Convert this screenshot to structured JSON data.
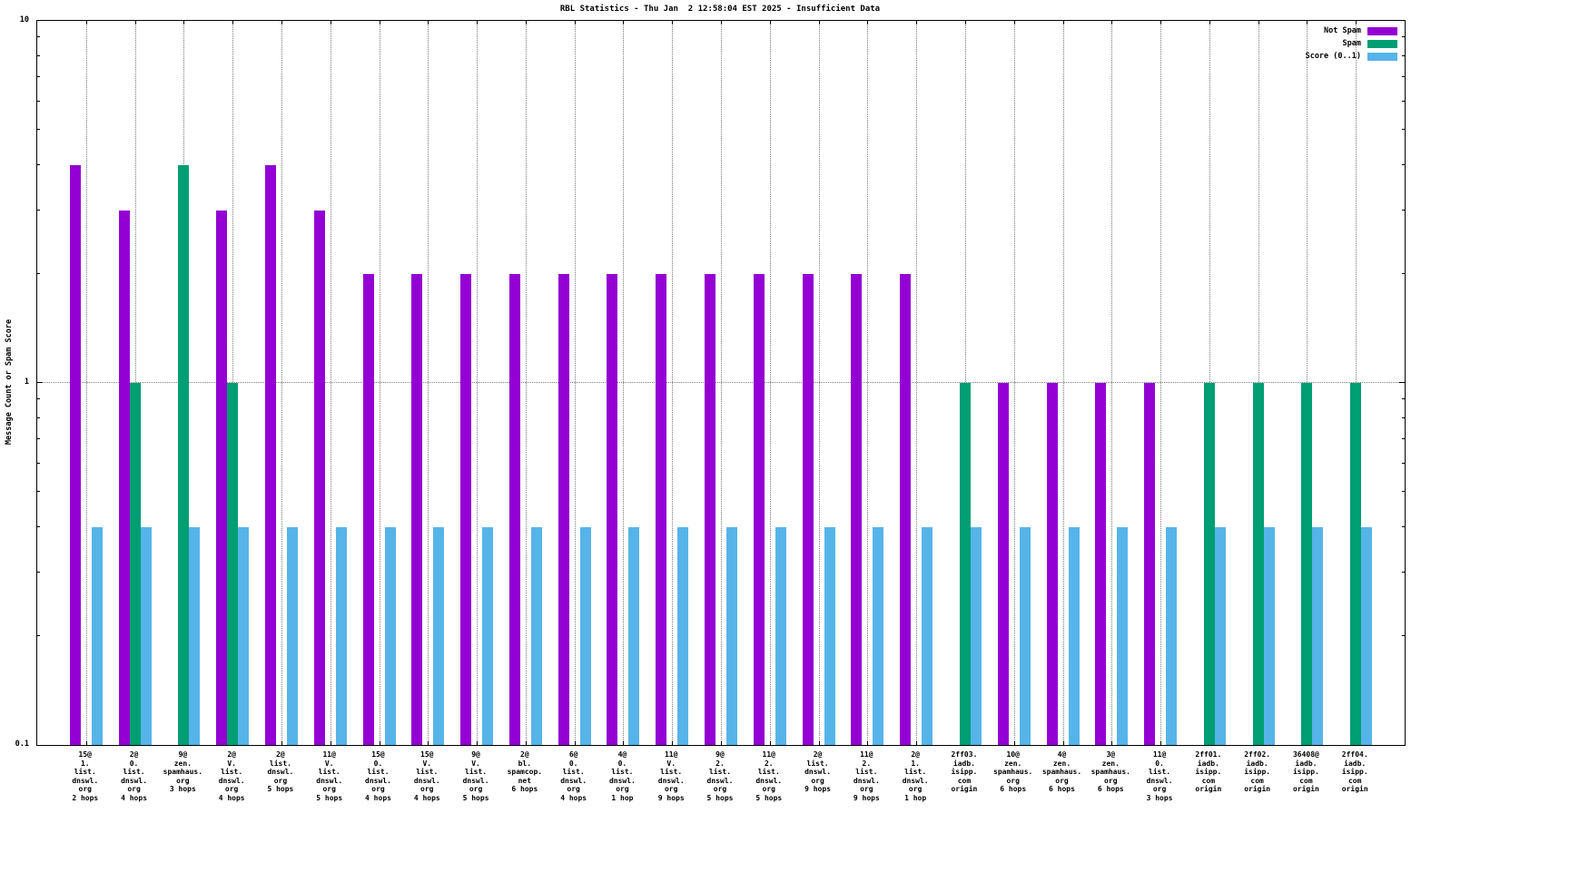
{
  "title": "RBL Statistics - Thu Jan  2 12:58:04 EST 2025 - Insufficient Data",
  "ylabel": "Message Count or Spam Score",
  "legend": [
    {
      "label": "Not Spam",
      "color": "#9400d3"
    },
    {
      "label": "Spam",
      "color": "#009e73"
    },
    {
      "label": "Score (0..1)",
      "color": "#56b4e9"
    }
  ],
  "chart_data": {
    "type": "bar",
    "y_scale": "log",
    "ylim": [
      0.1,
      10
    ],
    "y_major_ticks": [
      0.1,
      1,
      10
    ],
    "y_minor_ticks": [
      0.2,
      0.3,
      0.4,
      0.5,
      0.6,
      0.7,
      0.8,
      0.9,
      2,
      3,
      4,
      5,
      6,
      7,
      8,
      9
    ],
    "ytick_labels": [
      "10",
      "1",
      "0.1"
    ],
    "grid_horizontal_at": [
      1
    ],
    "grid_vertical_per_category": true,
    "legend_position": "top-right-inside",
    "title": "RBL Statistics - Thu Jan  2 12:58:04 EST 2025 - Insufficient Data",
    "xlabel": "",
    "categories": [
      [
        "15@",
        "1.",
        "list.",
        "dnswl.",
        "org",
        "2 hops"
      ],
      [
        "2@",
        "0.",
        "list.",
        "dnswl.",
        "org",
        "4 hops"
      ],
      [
        "9@",
        "zen.",
        "spamhaus.",
        "org",
        "3 hops"
      ],
      [
        "2@",
        "V.",
        "list.",
        "dnswl.",
        "org",
        "4 hops"
      ],
      [
        "2@",
        "list.",
        "dnswl.",
        "org",
        "5 hops"
      ],
      [
        "11@",
        "V.",
        "list.",
        "dnswl.",
        "org",
        "5 hops"
      ],
      [
        "15@",
        "0.",
        "list.",
        "dnswl.",
        "org",
        "4 hops"
      ],
      [
        "15@",
        "V.",
        "list.",
        "dnswl.",
        "org",
        "4 hops"
      ],
      [
        "9@",
        "V.",
        "list.",
        "dnswl.",
        "org",
        "5 hops"
      ],
      [
        "2@",
        "bl.",
        "spamcop.",
        "net",
        "6 hops"
      ],
      [
        "6@",
        "0.",
        "list.",
        "dnswl.",
        "org",
        "4 hops"
      ],
      [
        "4@",
        "0.",
        "list.",
        "dnswl.",
        "org",
        "1 hop"
      ],
      [
        "11@",
        "V.",
        "list.",
        "dnswl.",
        "org",
        "9 hops"
      ],
      [
        "9@",
        "2.",
        "list.",
        "dnswl.",
        "org",
        "5 hops"
      ],
      [
        "11@",
        "2.",
        "list.",
        "dnswl.",
        "org",
        "5 hops"
      ],
      [
        "2@",
        "list.",
        "dnswl.",
        "org",
        "9 hops"
      ],
      [
        "11@",
        "2.",
        "list.",
        "dnswl.",
        "org",
        "9 hops"
      ],
      [
        "2@",
        "1.",
        "list.",
        "dnswl.",
        "org",
        "1 hop"
      ],
      [
        "2ff03.",
        "iadb.",
        "isipp.",
        "com",
        "origin"
      ],
      [
        "10@",
        "zen.",
        "spamhaus.",
        "org",
        "6 hops"
      ],
      [
        "4@",
        "zen.",
        "spamhaus.",
        "org",
        "6 hops"
      ],
      [
        "3@",
        "zen.",
        "spamhaus.",
        "org",
        "6 hops"
      ],
      [
        "11@",
        "0.",
        "list.",
        "dnswl.",
        "org",
        "3 hops"
      ],
      [
        "2ff01.",
        "iadb.",
        "isipp.",
        "com",
        "origin"
      ],
      [
        "2ff02.",
        "iadb.",
        "isipp.",
        "com",
        "origin"
      ],
      [
        "36408@",
        "iadb.",
        "isipp.",
        "com",
        "origin"
      ],
      [
        "2ff04.",
        "iadb.",
        "isipp.",
        "com",
        "origin"
      ]
    ],
    "series": [
      {
        "name": "Not Spam",
        "color": "#9400d3",
        "values": [
          4,
          3,
          0,
          3,
          4,
          3,
          2,
          2,
          2,
          2,
          2,
          2,
          2,
          2,
          2,
          2,
          2,
          2,
          0,
          1,
          1,
          1,
          1,
          0,
          0,
          0,
          0
        ]
      },
      {
        "name": "Spam",
        "color": "#009e73",
        "values": [
          0,
          1,
          4,
          1,
          0,
          0,
          0,
          0,
          0,
          0,
          0,
          0,
          0,
          0,
          0,
          0,
          0,
          0,
          1,
          0,
          0,
          0,
          0,
          1,
          1,
          1,
          1
        ]
      },
      {
        "name": "Score (0..1)",
        "color": "#56b4e9",
        "values": [
          0.4,
          0.4,
          0.4,
          0.4,
          0.4,
          0.4,
          0.4,
          0.4,
          0.4,
          0.4,
          0.4,
          0.4,
          0.4,
          0.4,
          0.4,
          0.4,
          0.4,
          0.4,
          0.4,
          0.4,
          0.4,
          0.4,
          0.4,
          0.4,
          0.4,
          0.4,
          0.4
        ]
      }
    ]
  }
}
